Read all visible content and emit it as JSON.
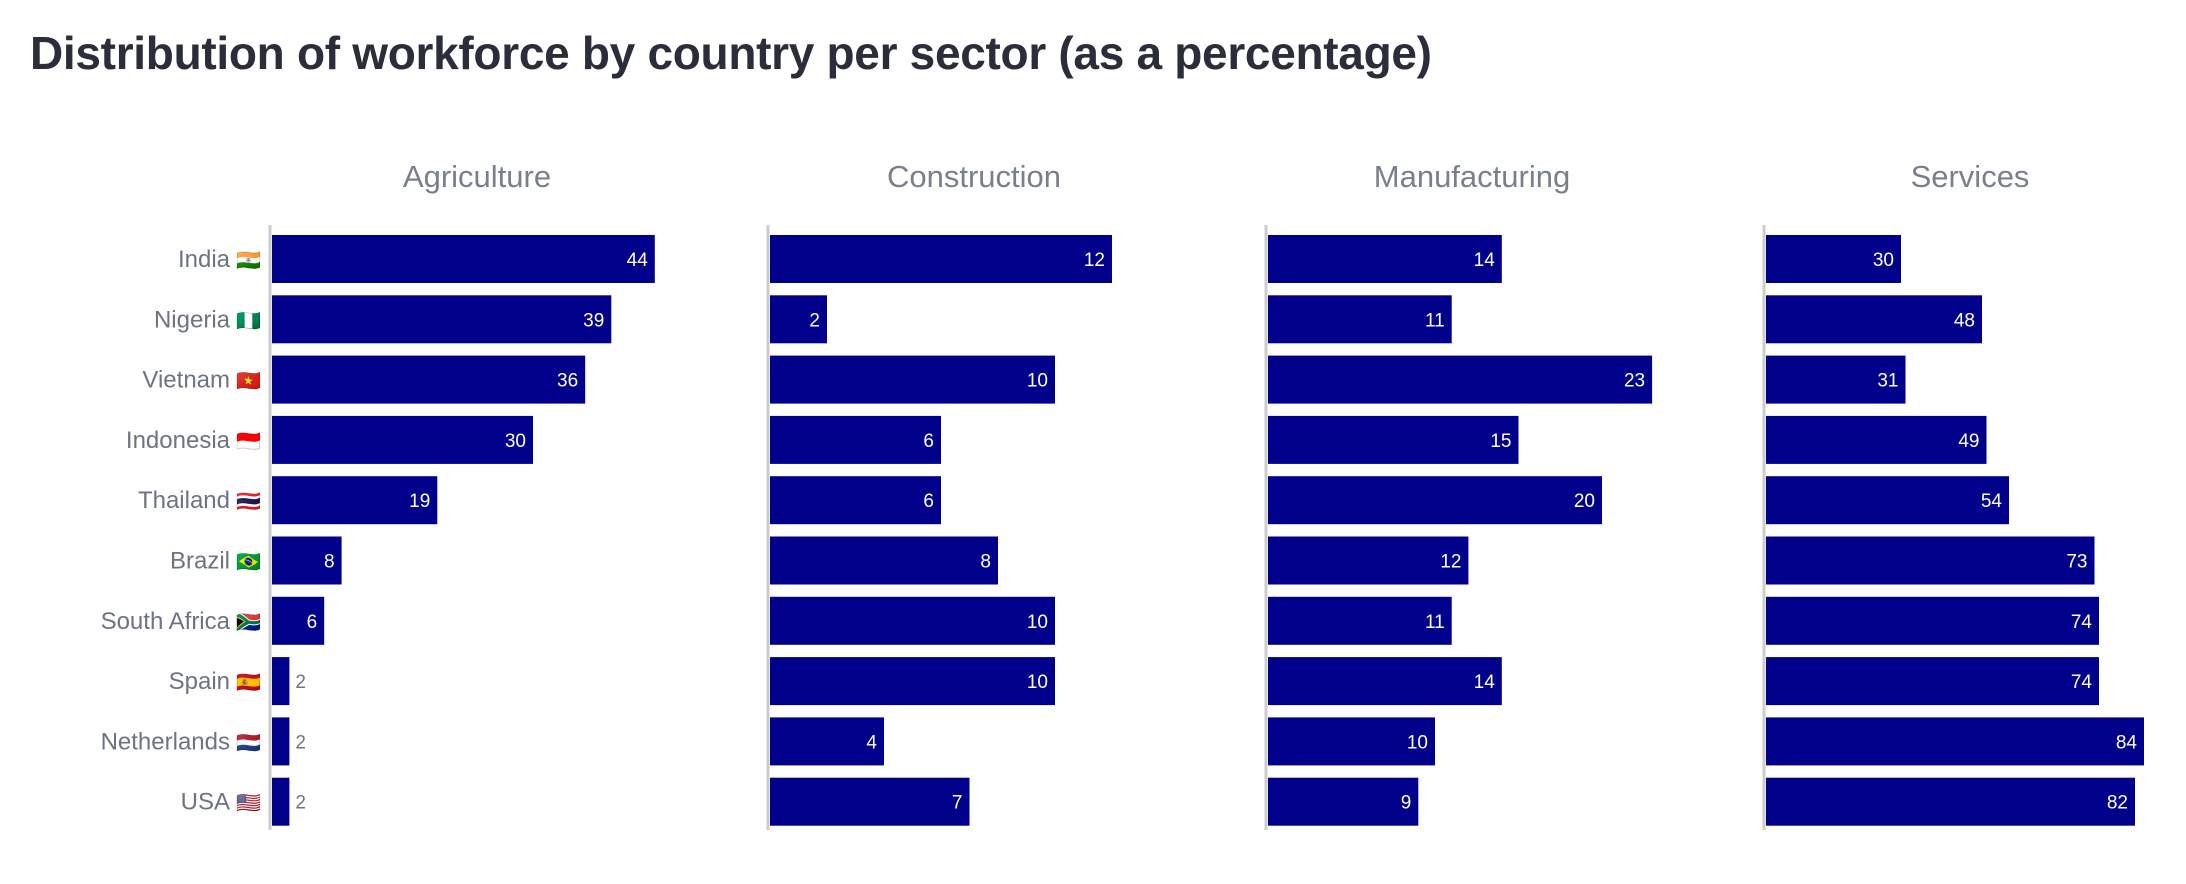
{
  "title": "Distribution of workforce by country per sector (as a percentage)",
  "colors": {
    "bar": "#00008b",
    "axis": "#cccccc",
    "title": "#2b2d3a",
    "label": "#6e7384",
    "panel_title": "#7a7f8e"
  },
  "chart_data": {
    "type": "bar",
    "orientation": "horizontal",
    "title": "Distribution of workforce by country per sector (as a percentage)",
    "categories": [
      "India",
      "Nigeria",
      "Vietnam",
      "Indonesia",
      "Thailand",
      "Brazil",
      "South Africa",
      "Spain",
      "Netherlands",
      "USA"
    ],
    "flags": [
      "🇮🇳",
      "🇳🇬",
      "🇻🇳",
      "🇮🇩",
      "🇹🇭",
      "🇧🇷",
      "🇿🇦",
      "🇪🇸",
      "🇳🇱",
      "🇺🇸"
    ],
    "panels": [
      {
        "name": "Agriculture",
        "values": [
          44,
          39,
          36,
          30,
          19,
          8,
          6,
          2,
          2,
          2
        ]
      },
      {
        "name": "Construction",
        "values": [
          12,
          2,
          10,
          6,
          6,
          8,
          10,
          10,
          4,
          7
        ]
      },
      {
        "name": "Manufacturing",
        "values": [
          14,
          11,
          23,
          15,
          20,
          12,
          11,
          14,
          10,
          9
        ]
      },
      {
        "name": "Services",
        "values": [
          30,
          48,
          31,
          49,
          54,
          73,
          74,
          74,
          84,
          82
        ]
      }
    ],
    "grid": false,
    "legend": "none"
  }
}
